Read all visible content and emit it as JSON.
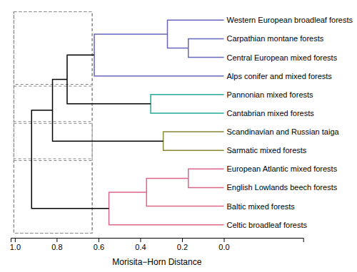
{
  "chart_data": {
    "type": "dendrogram",
    "x_label": "Morisita−Horn Distance",
    "categories": [
      "Western European broadleaf forests",
      "Carpathian montane forests",
      "Central European mixed forests",
      "Alps conifer and mixed forests",
      "Pannonian mixed forests",
      "Cantabrian mixed forests",
      "Scandinavian and Russian taiga",
      "Sarmatic mixed forests",
      "European Atlantic mixed forests",
      "English Lowlands beech forests",
      "Baltic mixed forests",
      "Celtic broadleaf forests"
    ],
    "leaf_value": 0.0,
    "merges": [
      {
        "children": [
          1,
          2
        ],
        "value": 0.17,
        "color": "#6666bb"
      },
      {
        "children": [
          0,
          12
        ],
        "value": 0.27,
        "color": "#6666bb"
      },
      {
        "children": [
          13,
          3
        ],
        "value": 0.62,
        "color": "#6666bb"
      },
      {
        "children": [
          4,
          5
        ],
        "value": 0.35,
        "color": "#22aa99"
      },
      {
        "children": [
          6,
          7
        ],
        "value": 0.29,
        "color": "#888833"
      },
      {
        "children": [
          14,
          15
        ],
        "value": 0.75,
        "color": "#000000"
      },
      {
        "children": [
          17,
          16
        ],
        "value": 0.82,
        "color": "#000000"
      },
      {
        "children": [
          8,
          9
        ],
        "value": 0.17,
        "color": "#dd6688"
      },
      {
        "children": [
          19,
          10
        ],
        "value": 0.37,
        "color": "#dd6688"
      },
      {
        "children": [
          20,
          11
        ],
        "value": 0.55,
        "color": "#dd6688"
      },
      {
        "children": [
          18,
          21
        ],
        "value": 0.92,
        "color": "#000000"
      }
    ],
    "boxes": [
      {
        "range": [
          0.63,
          1.005
        ],
        "leaves": [
          0,
          11
        ]
      },
      {
        "range": [
          0.63,
          1.005
        ],
        "leaves": [
          0,
          3
        ]
      },
      {
        "range": [
          0.63,
          1.005
        ],
        "leaves": [
          4,
          5
        ]
      },
      {
        "range": [
          0.63,
          1.005
        ],
        "leaves": [
          6,
          7
        ]
      },
      {
        "range": [
          0.63,
          1.005
        ],
        "leaves": [
          8,
          11
        ]
      }
    ],
    "box_color": "#888888",
    "xlim": [
      1.02,
      -0.38
    ],
    "xticks": [
      {
        "value": 1.0,
        "label": "1.0"
      },
      0.8,
      0.6,
      0.4,
      0.2,
      {
        "value": 0.0,
        "label": "0.0"
      }
    ]
  }
}
